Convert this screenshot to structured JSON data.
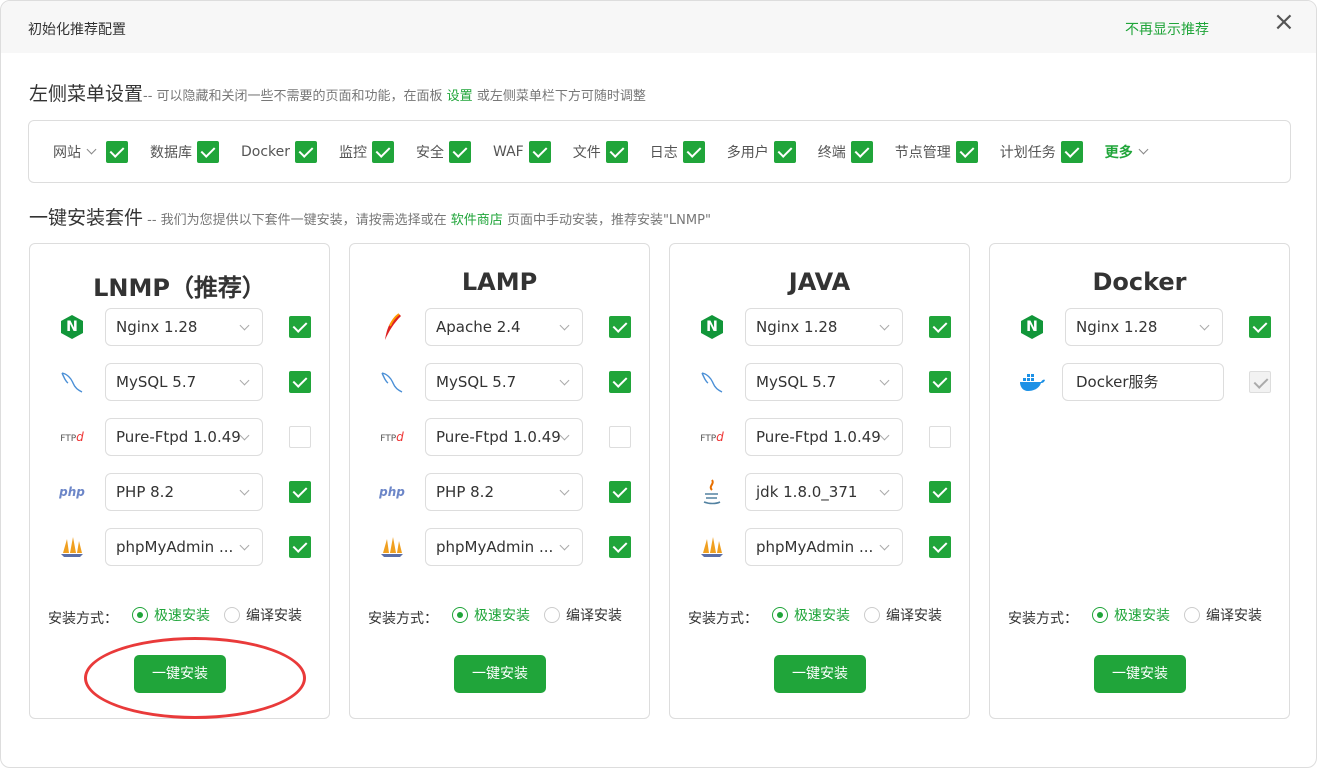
{
  "header": {
    "title": "初始化推荐配置",
    "no_more": "不再显示推荐",
    "close": "×"
  },
  "menu_section": {
    "title": "左侧菜单设置",
    "desc_pre": "-- 可以隐藏和关闭一些不需要的页面和功能，在面板 ",
    "link": "设置",
    "desc_post": " 或左侧菜单栏下方可随时调整"
  },
  "menu_items": [
    {
      "label": "网站",
      "checked": true,
      "dropdown": true
    },
    {
      "label": "数据库",
      "checked": true
    },
    {
      "label": "Docker",
      "checked": true
    },
    {
      "label": "监控",
      "checked": true
    },
    {
      "label": "安全",
      "checked": true
    },
    {
      "label": "WAF",
      "checked": true
    },
    {
      "label": "文件",
      "checked": true
    },
    {
      "label": "日志",
      "checked": true
    },
    {
      "label": "多用户",
      "checked": true
    },
    {
      "label": "终端",
      "checked": true
    },
    {
      "label": "节点管理",
      "checked": true
    },
    {
      "label": "计划任务",
      "checked": true
    }
  ],
  "menu_more": "更多",
  "suite_section": {
    "title": "一键安装套件",
    "desc_pre": " -- 我们为您提供以下套件一键安装，请按需选择或在 ",
    "link": "软件商店",
    "desc_post": " 页面中手动安装，推荐安装\"LNMP\""
  },
  "install_method_label": "安装方式：",
  "fast_label": "极速安装",
  "compile_label": "编译安装",
  "install_button": "一键安装",
  "accent_color": "#20a53a",
  "cards": [
    {
      "title": "LNMP（推荐）",
      "rows": [
        {
          "icon": "nginx-icon",
          "value": "Nginx 1.28",
          "checked": true
        },
        {
          "icon": "mysql-icon",
          "value": "MySQL 5.7",
          "checked": true
        },
        {
          "icon": "ftp-icon",
          "value": "Pure-Ftpd 1.0.49",
          "checked": false
        },
        {
          "icon": "php-icon",
          "value": "PHP 8.2",
          "checked": true
        },
        {
          "icon": "phpmyadmin-icon",
          "value": "phpMyAdmin ...",
          "checked": true
        }
      ]
    },
    {
      "title": "LAMP",
      "rows": [
        {
          "icon": "apache-icon",
          "value": "Apache 2.4",
          "checked": true
        },
        {
          "icon": "mysql-icon",
          "value": "MySQL 5.7",
          "checked": true
        },
        {
          "icon": "ftp-icon",
          "value": "Pure-Ftpd 1.0.49",
          "checked": false
        },
        {
          "icon": "php-icon",
          "value": "PHP 8.2",
          "checked": true
        },
        {
          "icon": "phpmyadmin-icon",
          "value": "phpMyAdmin ...",
          "checked": true
        }
      ]
    },
    {
      "title": "JAVA",
      "rows": [
        {
          "icon": "nginx-icon",
          "value": "Nginx 1.28",
          "checked": true
        },
        {
          "icon": "mysql-icon",
          "value": "MySQL 5.7",
          "checked": true
        },
        {
          "icon": "ftp-icon",
          "value": "Pure-Ftpd 1.0.49",
          "checked": false
        },
        {
          "icon": "java-icon",
          "value": "jdk 1.8.0_371",
          "checked": true
        },
        {
          "icon": "phpmyadmin-icon",
          "value": "phpMyAdmin ...",
          "checked": true
        }
      ]
    },
    {
      "title": "Docker",
      "rows": [
        {
          "icon": "nginx-icon",
          "value": "Nginx 1.28",
          "checked": true
        },
        {
          "icon": "docker-icon",
          "value": "Docker服务",
          "checked": true,
          "disabled": true,
          "input": true
        }
      ]
    }
  ]
}
